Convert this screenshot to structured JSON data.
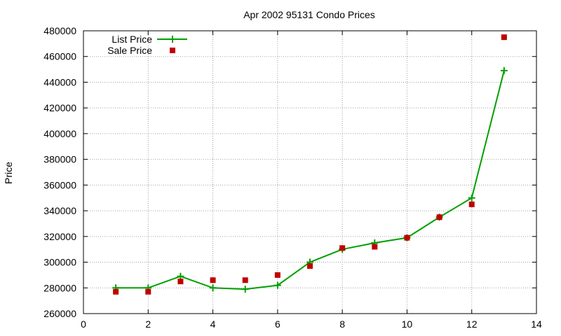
{
  "chart_data": {
    "type": "line",
    "title": "Apr 2002 95131 Condo Prices",
    "xlabel": "",
    "ylabel": "Price",
    "xlim": [
      0,
      14
    ],
    "ylim": [
      260000,
      480000
    ],
    "x_ticks": [
      0,
      2,
      4,
      6,
      8,
      10,
      12,
      14
    ],
    "y_ticks": [
      260000,
      280000,
      300000,
      320000,
      340000,
      360000,
      380000,
      400000,
      420000,
      440000,
      460000,
      480000
    ],
    "grid": true,
    "legend_position": "top-left",
    "series": [
      {
        "name": "List Price",
        "type": "line",
        "marker": "plus",
        "color": "#00a000",
        "x": [
          1,
          2,
          3,
          4,
          5,
          6,
          7,
          8,
          9,
          10,
          11,
          12,
          13
        ],
        "y": [
          280000,
          280000,
          289000,
          280000,
          279000,
          282000,
          300000,
          310000,
          315000,
          319000,
          335000,
          350000,
          449000
        ]
      },
      {
        "name": "Sale Price",
        "type": "scatter",
        "marker": "square",
        "color": "#c00000",
        "x": [
          1,
          2,
          3,
          4,
          5,
          6,
          7,
          8,
          9,
          10,
          11,
          12,
          13
        ],
        "y": [
          277000,
          277000,
          285000,
          286000,
          286000,
          290000,
          297000,
          311000,
          312000,
          319000,
          335000,
          345000,
          475000
        ]
      }
    ]
  }
}
